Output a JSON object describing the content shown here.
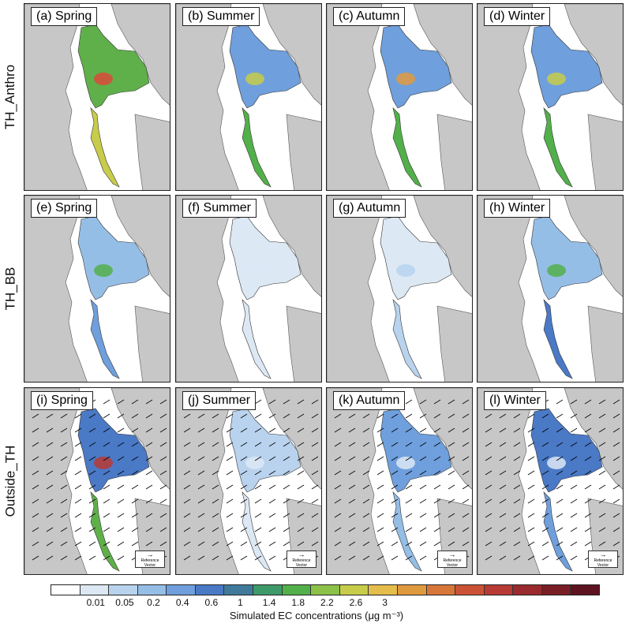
{
  "rows": [
    {
      "label": "TH_Anthro",
      "panels": [
        "(a) Spring",
        "(b) Summer",
        "(c) Autumn",
        "(d) Winter"
      ]
    },
    {
      "label": "TH_BB",
      "panels": [
        "(e) Spring",
        "(f) Summer",
        "(g) Autumn",
        "(h) Winter"
      ]
    },
    {
      "label": "Outside_TH",
      "panels": [
        "(i) Spring",
        "(j) Summer",
        "(k) Autumn",
        "(l) Winter"
      ]
    }
  ],
  "reference_vector": {
    "label": "Reference Vector"
  },
  "colorbar": {
    "title": "Simulated EC concentrations (μg m⁻³)",
    "ticks": [
      "0.01",
      "0.05",
      "0.2",
      "0.4",
      "0.6",
      "1",
      "1.4",
      "1.8",
      "2.2",
      "2.6",
      "3"
    ],
    "colors": [
      "#ffffff",
      "#dce8f4",
      "#b9d3ee",
      "#95bee6",
      "#6f9fdc",
      "#4a79c6",
      "#3f7a9a",
      "#3f9a6a",
      "#52b04a",
      "#8cc24a",
      "#c7cd4a",
      "#e4bd4a",
      "#e09a3e",
      "#d8763a",
      "#cc5236",
      "#b83a34",
      "#9a2a2e",
      "#7a1e26",
      "#5e1420"
    ]
  },
  "colors": {
    "land": "#c7c7c7",
    "sea": "#ffffff",
    "border": "#222222"
  }
}
